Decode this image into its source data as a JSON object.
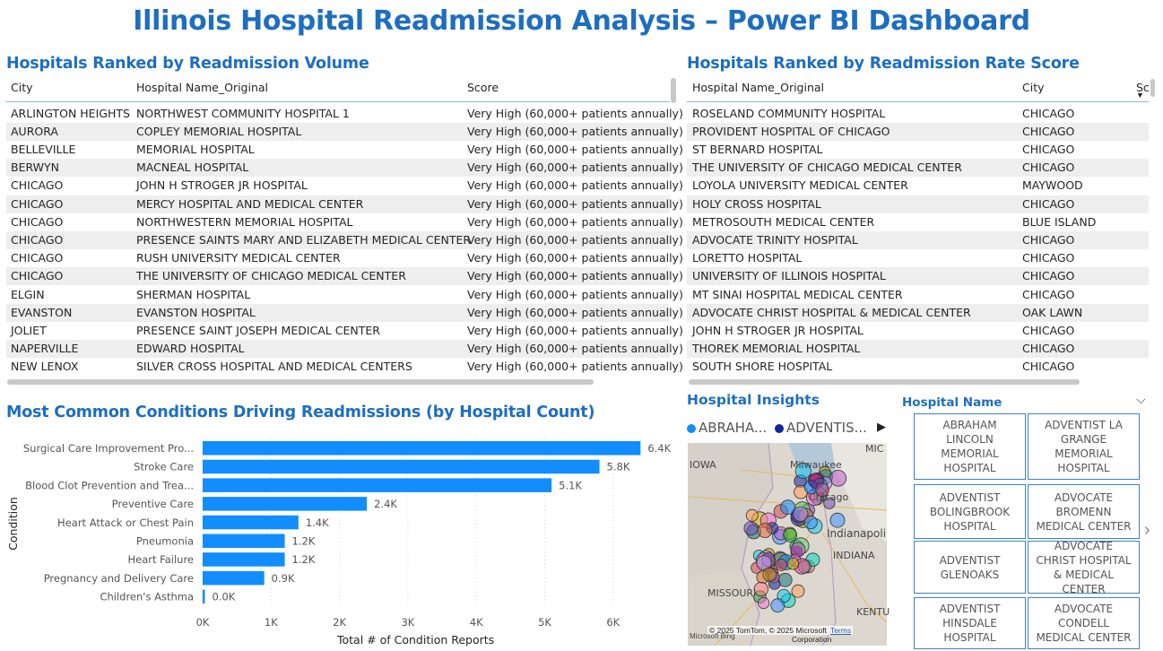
{
  "page": {
    "title": "Illinois Hospital Readmission Analysis – Power BI Dashboard"
  },
  "volume_table": {
    "title": "Hospitals Ranked by Readmission Volume",
    "columns": [
      "City",
      "Hospital Name_Original",
      "Score"
    ],
    "rows": [
      [
        "ARLINGTON HEIGHTS",
        "NORTHWEST COMMUNITY HOSPITAL 1",
        "Very High (60,000+ patients annually)"
      ],
      [
        "AURORA",
        "COPLEY MEMORIAL HOSPITAL",
        "Very High (60,000+ patients annually)"
      ],
      [
        "BELLEVILLE",
        "MEMORIAL HOSPITAL",
        "Very High (60,000+ patients annually)"
      ],
      [
        "BERWYN",
        "MACNEAL HOSPITAL",
        "Very High (60,000+ patients annually)"
      ],
      [
        "CHICAGO",
        "JOHN H STROGER JR HOSPITAL",
        "Very High (60,000+ patients annually)"
      ],
      [
        "CHICAGO",
        "MERCY HOSPITAL AND MEDICAL CENTER",
        "Very High (60,000+ patients annually)"
      ],
      [
        "CHICAGO",
        "NORTHWESTERN MEMORIAL HOSPITAL",
        "Very High (60,000+ patients annually)"
      ],
      [
        "CHICAGO",
        "PRESENCE SAINTS MARY AND ELIZABETH MEDICAL CENTER",
        "Very High (60,000+ patients annually)"
      ],
      [
        "CHICAGO",
        "RUSH UNIVERSITY MEDICAL CENTER",
        "Very High (60,000+ patients annually)"
      ],
      [
        "CHICAGO",
        "THE UNIVERSITY OF CHICAGO MEDICAL CENTER",
        "Very High (60,000+ patients annually)"
      ],
      [
        "ELGIN",
        "SHERMAN HOSPITAL",
        "Very High (60,000+ patients annually)"
      ],
      [
        "EVANSTON",
        "EVANSTON HOSPITAL",
        "Very High (60,000+ patients annually)"
      ],
      [
        "JOLIET",
        "PRESENCE SAINT JOSEPH MEDICAL CENTER",
        "Very High (60,000+ patients annually)"
      ],
      [
        "NAPERVILLE",
        "EDWARD HOSPITAL",
        "Very High (60,000+ patients annually)"
      ],
      [
        "NEW LENOX",
        "SILVER CROSS HOSPITAL AND MEDICAL CENTERS",
        "Very High (60,000+ patients annually)"
      ]
    ]
  },
  "rate_table": {
    "title": "Hospitals Ranked by Readmission Rate Score",
    "columns": [
      "Hospital Name_Original",
      "City",
      "Sc"
    ],
    "rows": [
      [
        "ROSELAND COMMUNITY HOSPITAL",
        "CHICAGO"
      ],
      [
        "PROVIDENT HOSPITAL OF CHICAGO",
        "CHICAGO"
      ],
      [
        "ST BERNARD HOSPITAL",
        "CHICAGO"
      ],
      [
        "THE UNIVERSITY OF CHICAGO MEDICAL CENTER",
        "CHICAGO"
      ],
      [
        "LOYOLA UNIVERSITY MEDICAL CENTER",
        "MAYWOOD"
      ],
      [
        "HOLY CROSS HOSPITAL",
        "CHICAGO"
      ],
      [
        "METROSOUTH MEDICAL CENTER",
        "BLUE ISLAND"
      ],
      [
        "ADVOCATE TRINITY HOSPITAL",
        "CHICAGO"
      ],
      [
        "LORETTO HOSPITAL",
        "CHICAGO"
      ],
      [
        "UNIVERSITY OF ILLINOIS HOSPITAL",
        "CHICAGO"
      ],
      [
        "MT SINAI HOSPITAL MEDICAL CENTER",
        "CHICAGO"
      ],
      [
        "ADVOCATE CHRIST HOSPITAL & MEDICAL CENTER",
        "OAK LAWN"
      ],
      [
        "JOHN H STROGER JR HOSPITAL",
        "CHICAGO"
      ],
      [
        "THOREK MEMORIAL HOSPITAL",
        "CHICAGO"
      ],
      [
        "SOUTH SHORE HOSPITAL",
        "CHICAGO"
      ]
    ]
  },
  "conditions_chart": {
    "title": "Most Common Conditions Driving Readmissions (by Hospital Count)",
    "chart_data": {
      "type": "bar",
      "orientation": "horizontal",
      "categories": [
        "Surgical Care Improvement Pro...",
        "Stroke Care",
        "Blood Clot Prevention and Trea...",
        "Preventive Care",
        "Heart Attack or Chest Pain",
        "Pneumonia",
        "Heart Failure",
        "Pregnancy and Delivery Care",
        "Children's Asthma"
      ],
      "values": [
        6400,
        5800,
        5100,
        2400,
        1400,
        1200,
        1200,
        900,
        30
      ],
      "data_labels": [
        "6.4K",
        "5.8K",
        "5.1K",
        "2.4K",
        "1.4K",
        "1.2K",
        "1.2K",
        "0.9K",
        "0.0K"
      ],
      "xlabel": "Total # of Condition Reports",
      "ylabel": "Condition",
      "xticks": [
        "0K",
        "1K",
        "2K",
        "3K",
        "4K",
        "5K",
        "6K"
      ],
      "xlim": [
        0,
        6700
      ],
      "grid": "vertical-dotted",
      "bar_color": "#118dff"
    }
  },
  "map_visual": {
    "title": "Hospital Insights",
    "legend": [
      {
        "label": "ABRAHA...",
        "color": "#118dff"
      },
      {
        "label": "ADVENTIS...",
        "color": "#12239e"
      }
    ],
    "place_labels": [
      "IOWA",
      "Milwaukee",
      "Chicago",
      "MIC",
      "Indianapoli",
      "INDIANA",
      "MISSOURI",
      "KENTU"
    ],
    "attribution": "© 2025 TomTom, © 2025 Microsoft",
    "attribution2": "Corporation",
    "terms": "Terms",
    "logo_text": "Microsoft Bing"
  },
  "slicer": {
    "title": "Hospital Name",
    "tiles": [
      "ABRAHAM LINCOLN MEMORIAL HOSPITAL",
      "ADVENTIST LA GRANGE MEMORIAL HOSPITAL",
      "ADVENTIST BOLINGBROOK HOSPITAL",
      "ADVOCATE BROMENN MEDICAL CENTER",
      "ADVENTIST GLENOAKS",
      "ADVOCATE CHRIST HOSPITAL & MEDICAL CENTER",
      "ADVENTIST HINSDALE HOSPITAL",
      "ADVOCATE CONDELL MEDICAL CENTER"
    ]
  }
}
